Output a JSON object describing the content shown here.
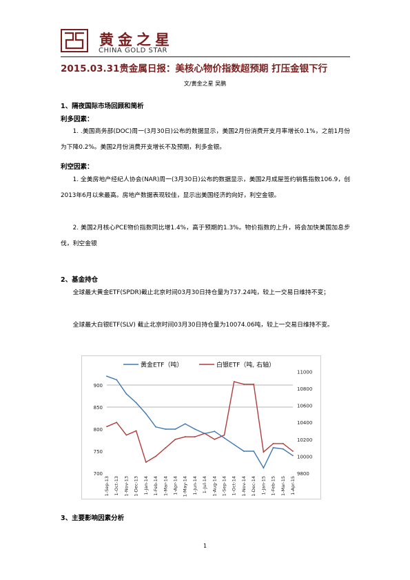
{
  "header": {
    "brand_cn": "黄金之星",
    "brand_en": "CHINA GOLD STAR"
  },
  "title": "2015.03.31贵金属日报：美核心物价指数超预期  打压金银下行",
  "byline": "文/黄金之星    吴鹏",
  "section1": {
    "heading": "1、隔夜国际市场回顾和简析",
    "bullish_heading": "利多因素：",
    "bullish_items": [
      "1. .美国商务部(DOC)周一(3月30日)公布的数据显示，美国2月份消费开支月率增长0.1%，之前1月份为下降0.2%。美国2月份消费开支增长不及预期，利多金银。"
    ],
    "bearish_heading": "利空因素：",
    "bearish_items": [
      "1. 全美房地产经纪人协会(NAR)周一(3月30日)公布的数据显示，美国2月成屋签约销售指数106.9，创2013年6月以来最高。房地产数据表现较佳，显示出美国经济的向好，利空金银。",
      "2. 美国2月核心PCE物价指数同比增1.4%，高于预期的1.3%。物价指数的上升，将会加快美国加息步伐，利空金银"
    ]
  },
  "section2": {
    "heading": "2、基金持仓",
    "paragraphs": [
      "全球最大黄金ETF(SPDR)截止北京时间03月30日持仓量为737.24吨，较上一交易日维持不变；",
      "全球最大白银ETF(SLV) 截止北京时间03月30日持仓量为10074.06吨，较上一交易日维持不变。"
    ]
  },
  "section3": {
    "heading": "3、主要影响因素分析"
  },
  "page_number": "1",
  "chart_data": {
    "type": "line",
    "categories": [
      "1-Sep-13",
      "1-Oct-13",
      "1-Nov-13",
      "1-Dec-13",
      "1-Jan-14",
      "1-Feb-14",
      "1-Mar-14",
      "1-Apr-14",
      "1-May-14",
      "1-Jun-14",
      "1-Jul-14",
      "1-Aug-14",
      "1-Sep-14",
      "1-Oct-14",
      "1-Nov-14",
      "1-Dec-14",
      "1-Jan-15",
      "1-Feb-15",
      "1-Mar-15",
      "1-Apr-15"
    ],
    "left_ylim": [
      700,
      950
    ],
    "left_ticks": [
      "700",
      "750",
      "800",
      "850",
      "900"
    ],
    "right_ylim": [
      9800,
      11100
    ],
    "right_ticks": [
      "9800",
      "10000",
      "10200",
      "10400",
      "10600",
      "10800",
      "11000"
    ],
    "gridlines_left": [
      850,
      900
    ],
    "series": [
      {
        "name": "黄金ETF（吨）",
        "axis": "left",
        "color": "#3e78b3",
        "values": [
          920,
          912,
          880,
          860,
          835,
          805,
          800,
          800,
          812,
          800,
          790,
          795,
          780,
          765,
          750,
          750,
          712,
          758,
          755,
          740
        ]
      },
      {
        "name": "白银ETF（吨, 右轴）",
        "axis": "right",
        "color": "#b23a3a",
        "values": [
          10350,
          10400,
          10250,
          10300,
          9930,
          10000,
          10100,
          10200,
          10230,
          10230,
          10270,
          10200,
          10250,
          10880,
          10850,
          10850,
          10050,
          10150,
          10150,
          10060
        ]
      }
    ]
  }
}
